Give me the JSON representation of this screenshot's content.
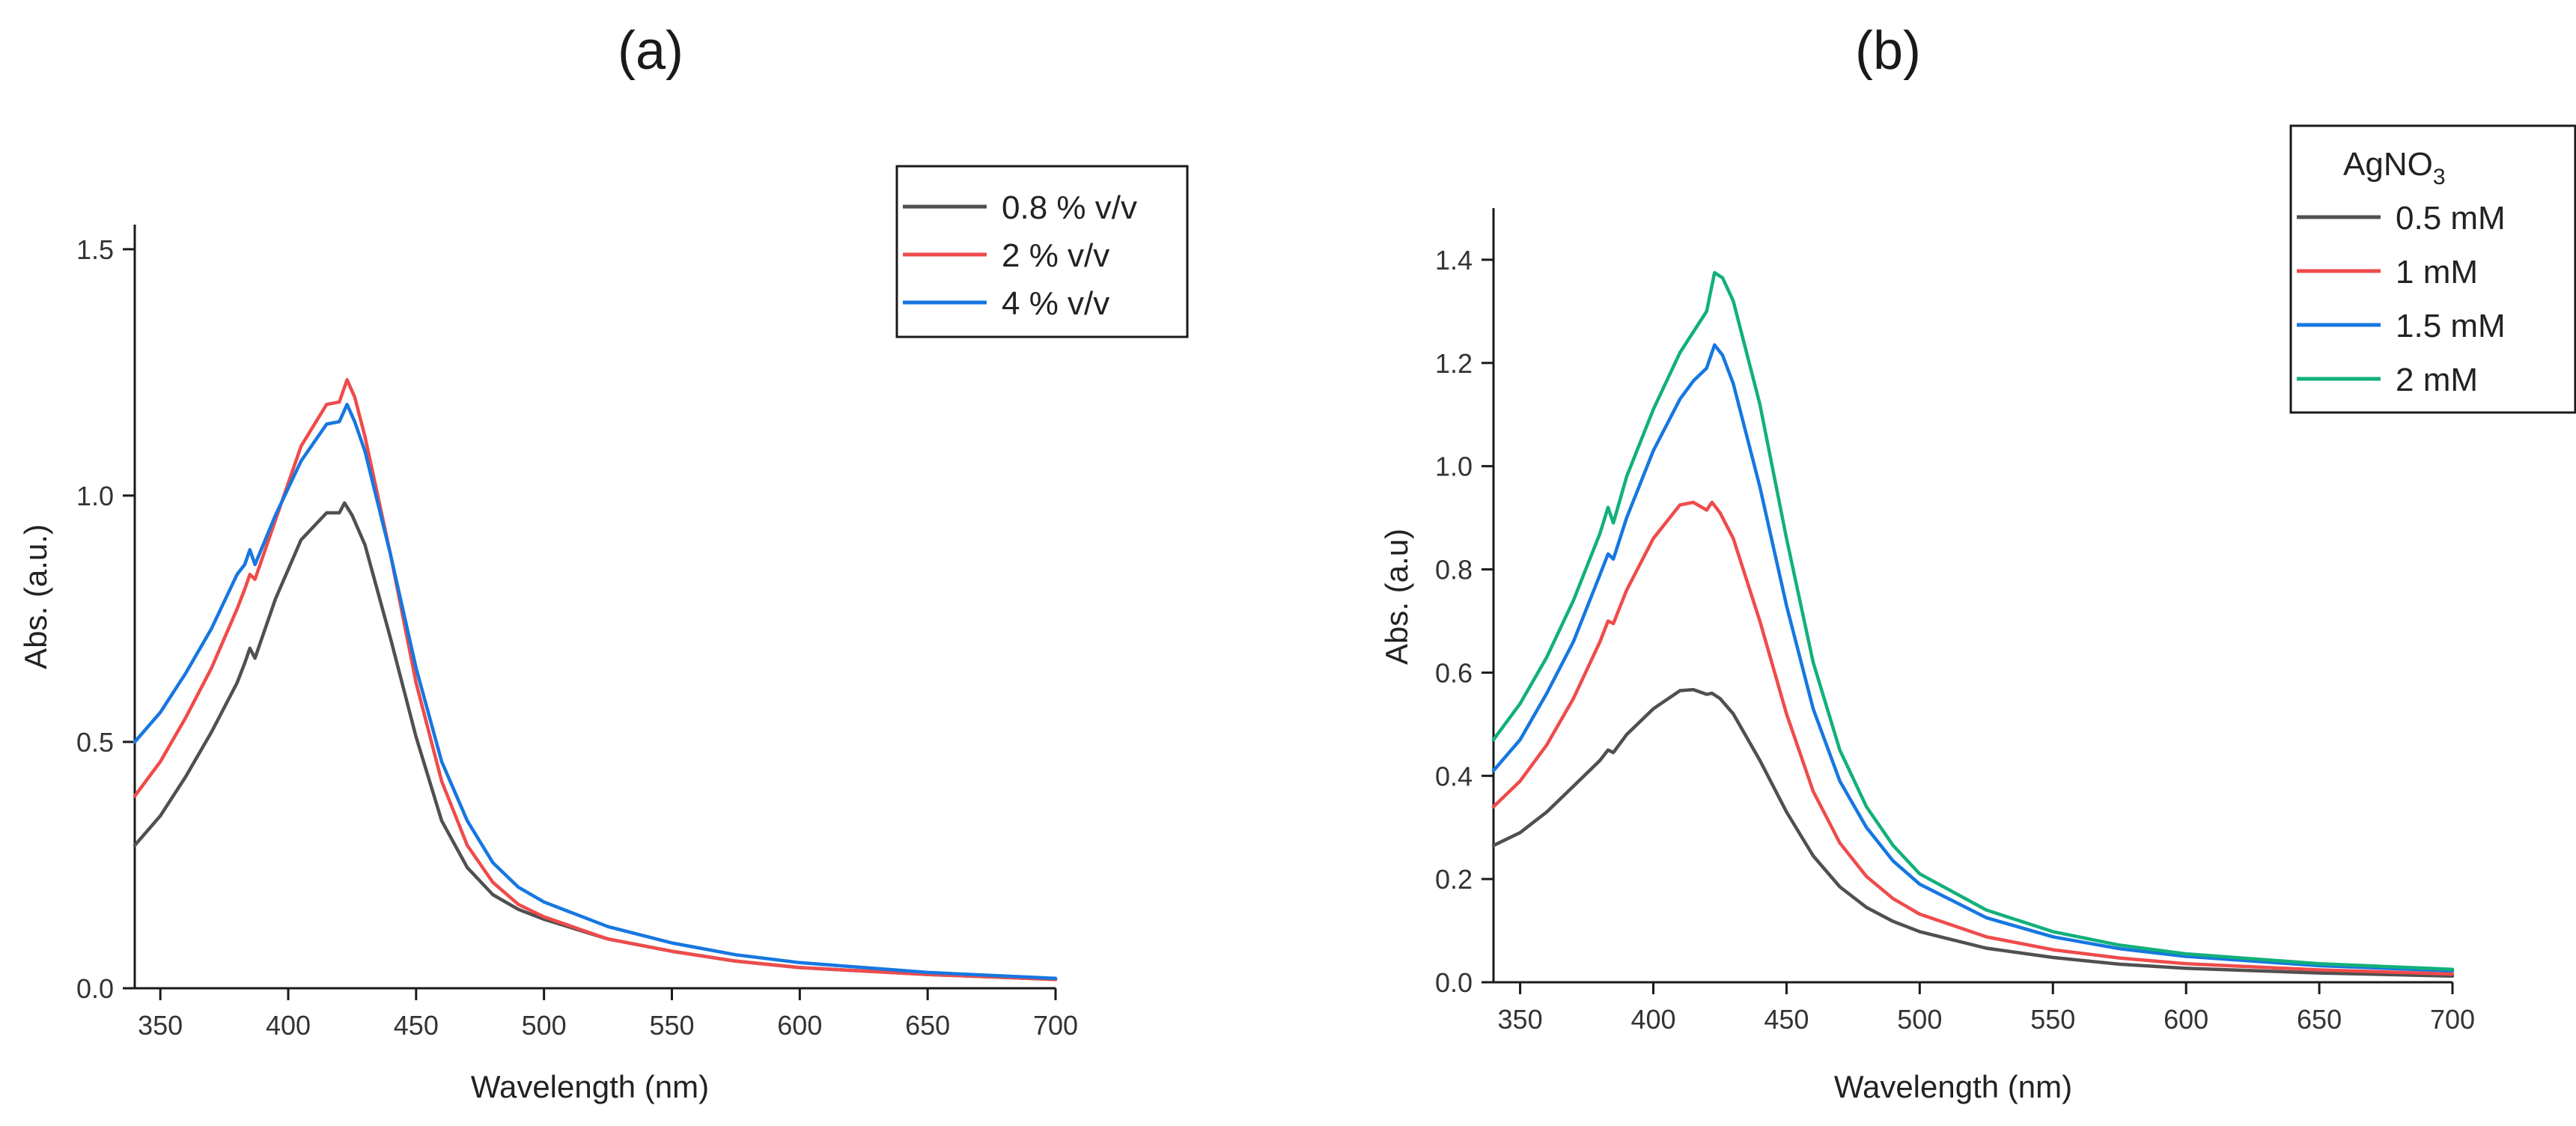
{
  "chart_data": [
    {
      "panel": "(a)",
      "type": "line",
      "xlabel": "Wavelength (nm)",
      "ylabel": "Abs. (a.u.)",
      "xlim": [
        340,
        700
      ],
      "ylim": [
        0.0,
        1.55
      ],
      "xticks": [
        350,
        400,
        450,
        500,
        550,
        600,
        650,
        700
      ],
      "yticks": [
        0.0,
        0.5,
        1.0,
        1.5
      ],
      "ytick_labels": [
        "0.0",
        "0.5",
        "1.0",
        "1.5"
      ],
      "legend_position": "top-right",
      "series": [
        {
          "name": "0.8 % v/v",
          "color": "#505050",
          "points": [
            [
              340,
              0.29
            ],
            [
              350,
              0.35
            ],
            [
              360,
              0.43
            ],
            [
              370,
              0.52
            ],
            [
              380,
              0.62
            ],
            [
              383,
              0.66
            ],
            [
              385,
              0.69
            ],
            [
              387,
              0.67
            ],
            [
              395,
              0.79
            ],
            [
              405,
              0.91
            ],
            [
              415,
              0.965
            ],
            [
              420,
              0.965
            ],
            [
              422,
              0.985
            ],
            [
              425,
              0.96
            ],
            [
              430,
              0.9
            ],
            [
              440,
              0.71
            ],
            [
              450,
              0.51
            ],
            [
              460,
              0.34
            ],
            [
              470,
              0.245
            ],
            [
              480,
              0.19
            ],
            [
              490,
              0.16
            ],
            [
              500,
              0.14
            ],
            [
              525,
              0.1
            ],
            [
              550,
              0.075
            ],
            [
              575,
              0.055
            ],
            [
              600,
              0.042
            ],
            [
              650,
              0.028
            ],
            [
              700,
              0.018
            ]
          ]
        },
        {
          "name": "2 % v/v",
          "color": "#ef4b4b",
          "points": [
            [
              340,
              0.39
            ],
            [
              350,
              0.46
            ],
            [
              360,
              0.55
            ],
            [
              370,
              0.65
            ],
            [
              380,
              0.77
            ],
            [
              383,
              0.81
            ],
            [
              385,
              0.84
            ],
            [
              387,
              0.83
            ],
            [
              395,
              0.95
            ],
            [
              405,
              1.1
            ],
            [
              415,
              1.185
            ],
            [
              420,
              1.19
            ],
            [
              423,
              1.235
            ],
            [
              426,
              1.2
            ],
            [
              430,
              1.12
            ],
            [
              440,
              0.88
            ],
            [
              450,
              0.62
            ],
            [
              460,
              0.42
            ],
            [
              470,
              0.29
            ],
            [
              480,
              0.215
            ],
            [
              490,
              0.17
            ],
            [
              500,
              0.145
            ],
            [
              525,
              0.1
            ],
            [
              550,
              0.075
            ],
            [
              575,
              0.055
            ],
            [
              600,
              0.042
            ],
            [
              650,
              0.028
            ],
            [
              700,
              0.018
            ]
          ]
        },
        {
          "name": "4 % v/v",
          "color": "#1677e0",
          "points": [
            [
              340,
              0.5
            ],
            [
              350,
              0.56
            ],
            [
              360,
              0.64
            ],
            [
              370,
              0.73
            ],
            [
              380,
              0.84
            ],
            [
              383,
              0.86
            ],
            [
              385,
              0.89
            ],
            [
              387,
              0.86
            ],
            [
              395,
              0.96
            ],
            [
              405,
              1.07
            ],
            [
              415,
              1.145
            ],
            [
              420,
              1.15
            ],
            [
              423,
              1.185
            ],
            [
              426,
              1.15
            ],
            [
              430,
              1.09
            ],
            [
              440,
              0.88
            ],
            [
              450,
              0.65
            ],
            [
              460,
              0.46
            ],
            [
              470,
              0.34
            ],
            [
              480,
              0.255
            ],
            [
              490,
              0.205
            ],
            [
              500,
              0.175
            ],
            [
              525,
              0.125
            ],
            [
              550,
              0.092
            ],
            [
              575,
              0.068
            ],
            [
              600,
              0.052
            ],
            [
              650,
              0.032
            ],
            [
              700,
              0.02
            ]
          ]
        }
      ]
    },
    {
      "panel": "(b)",
      "type": "line",
      "xlabel": "Wavelength (nm)",
      "ylabel": "Abs. (a.u)",
      "xlim": [
        340,
        700
      ],
      "ylim": [
        0.0,
        1.5
      ],
      "xticks": [
        350,
        400,
        450,
        500,
        550,
        600,
        650,
        700
      ],
      "yticks": [
        0.0,
        0.2,
        0.4,
        0.6,
        0.8,
        1.0,
        1.2,
        1.4
      ],
      "ytick_labels": [
        "0.0",
        "0.2",
        "0.4",
        "0.6",
        "0.8",
        "1.0",
        "1.2",
        "1.4"
      ],
      "legend_position": "top-right",
      "legend_title": "AgNO",
      "legend_title_sub": "3",
      "series": [
        {
          "name": "0.5 mM",
          "color": "#505050",
          "points": [
            [
              340,
              0.265
            ],
            [
              350,
              0.29
            ],
            [
              360,
              0.33
            ],
            [
              370,
              0.38
            ],
            [
              380,
              0.43
            ],
            [
              383,
              0.45
            ],
            [
              385,
              0.445
            ],
            [
              390,
              0.48
            ],
            [
              400,
              0.53
            ],
            [
              410,
              0.565
            ],
            [
              415,
              0.567
            ],
            [
              420,
              0.558
            ],
            [
              422,
              0.56
            ],
            [
              425,
              0.55
            ],
            [
              430,
              0.52
            ],
            [
              440,
              0.43
            ],
            [
              450,
              0.33
            ],
            [
              460,
              0.245
            ],
            [
              470,
              0.185
            ],
            [
              480,
              0.145
            ],
            [
              490,
              0.118
            ],
            [
              500,
              0.098
            ],
            [
              525,
              0.066
            ],
            [
              550,
              0.048
            ],
            [
              575,
              0.035
            ],
            [
              600,
              0.027
            ],
            [
              650,
              0.018
            ],
            [
              700,
              0.012
            ]
          ]
        },
        {
          "name": "1 mM",
          "color": "#ef4b4b",
          "points": [
            [
              340,
              0.34
            ],
            [
              350,
              0.39
            ],
            [
              360,
              0.46
            ],
            [
              370,
              0.55
            ],
            [
              380,
              0.66
            ],
            [
              383,
              0.7
            ],
            [
              385,
              0.695
            ],
            [
              390,
              0.76
            ],
            [
              400,
              0.86
            ],
            [
              410,
              0.925
            ],
            [
              415,
              0.93
            ],
            [
              420,
              0.915
            ],
            [
              422,
              0.93
            ],
            [
              425,
              0.91
            ],
            [
              430,
              0.86
            ],
            [
              440,
              0.7
            ],
            [
              450,
              0.52
            ],
            [
              460,
              0.37
            ],
            [
              470,
              0.27
            ],
            [
              480,
              0.205
            ],
            [
              490,
              0.162
            ],
            [
              500,
              0.132
            ],
            [
              525,
              0.088
            ],
            [
              550,
              0.063
            ],
            [
              575,
              0.047
            ],
            [
              600,
              0.036
            ],
            [
              650,
              0.024
            ],
            [
              700,
              0.016
            ]
          ]
        },
        {
          "name": "1.5 mM",
          "color": "#1677e0",
          "points": [
            [
              340,
              0.41
            ],
            [
              350,
              0.47
            ],
            [
              360,
              0.56
            ],
            [
              370,
              0.66
            ],
            [
              380,
              0.79
            ],
            [
              383,
              0.83
            ],
            [
              385,
              0.82
            ],
            [
              390,
              0.9
            ],
            [
              400,
              1.03
            ],
            [
              410,
              1.13
            ],
            [
              415,
              1.165
            ],
            [
              420,
              1.19
            ],
            [
              423,
              1.235
            ],
            [
              426,
              1.215
            ],
            [
              430,
              1.16
            ],
            [
              440,
              0.96
            ],
            [
              450,
              0.73
            ],
            [
              460,
              0.53
            ],
            [
              470,
              0.39
            ],
            [
              480,
              0.3
            ],
            [
              490,
              0.235
            ],
            [
              500,
              0.19
            ],
            [
              525,
              0.125
            ],
            [
              550,
              0.088
            ],
            [
              575,
              0.065
            ],
            [
              600,
              0.05
            ],
            [
              650,
              0.032
            ],
            [
              700,
              0.022
            ]
          ]
        },
        {
          "name": "2 mM",
          "color": "#12b07a",
          "points": [
            [
              340,
              0.47
            ],
            [
              350,
              0.54
            ],
            [
              360,
              0.63
            ],
            [
              370,
              0.74
            ],
            [
              380,
              0.87
            ],
            [
              383,
              0.92
            ],
            [
              385,
              0.89
            ],
            [
              390,
              0.98
            ],
            [
              400,
              1.11
            ],
            [
              410,
              1.22
            ],
            [
              415,
              1.26
            ],
            [
              420,
              1.3
            ],
            [
              423,
              1.375
            ],
            [
              426,
              1.365
            ],
            [
              430,
              1.32
            ],
            [
              440,
              1.12
            ],
            [
              450,
              0.86
            ],
            [
              460,
              0.62
            ],
            [
              470,
              0.45
            ],
            [
              480,
              0.34
            ],
            [
              490,
              0.265
            ],
            [
              500,
              0.21
            ],
            [
              525,
              0.14
            ],
            [
              550,
              0.098
            ],
            [
              575,
              0.072
            ],
            [
              600,
              0.055
            ],
            [
              650,
              0.036
            ],
            [
              700,
              0.025
            ]
          ]
        }
      ]
    }
  ]
}
